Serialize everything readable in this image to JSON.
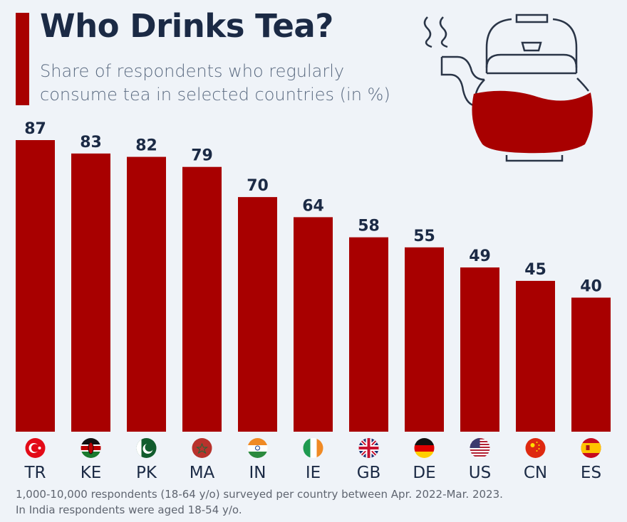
{
  "chart_data": {
    "type": "bar",
    "title": "Who Drinks Tea?",
    "subtitle": "Share of respondents who regularly consume tea in selected countries (in %)",
    "categories": [
      "TR",
      "KE",
      "PK",
      "MA",
      "IN",
      "IE",
      "GB",
      "DE",
      "US",
      "CN",
      "ES"
    ],
    "values": [
      87,
      83,
      82,
      79,
      70,
      64,
      58,
      55,
      49,
      45,
      40
    ],
    "ylim": [
      0,
      87
    ],
    "grid": false,
    "bar_color": "#a80000",
    "flags": [
      "turkey-flag-icon",
      "kenya-flag-icon",
      "pakistan-flag-icon",
      "morocco-flag-icon",
      "india-flag-icon",
      "ireland-flag-icon",
      "uk-flag-icon",
      "germany-flag-icon",
      "usa-flag-icon",
      "china-flag-icon",
      "spain-flag-icon"
    ]
  },
  "header": {
    "title": "Who Drinks Tea?",
    "subtitle_line1": "Share of respondents who regularly",
    "subtitle_line2": "consume tea in selected countries (in %)"
  },
  "footer": {
    "line1": "1,000-10,000 respondents (18-64 y/o) surveyed per country between Apr. 2022-Mar. 2023.",
    "line2": "In India respondents were aged 18-54 y/o."
  },
  "colors": {
    "accent": "#a80000",
    "title": "#1b2a45",
    "background": "#eff3f8"
  }
}
